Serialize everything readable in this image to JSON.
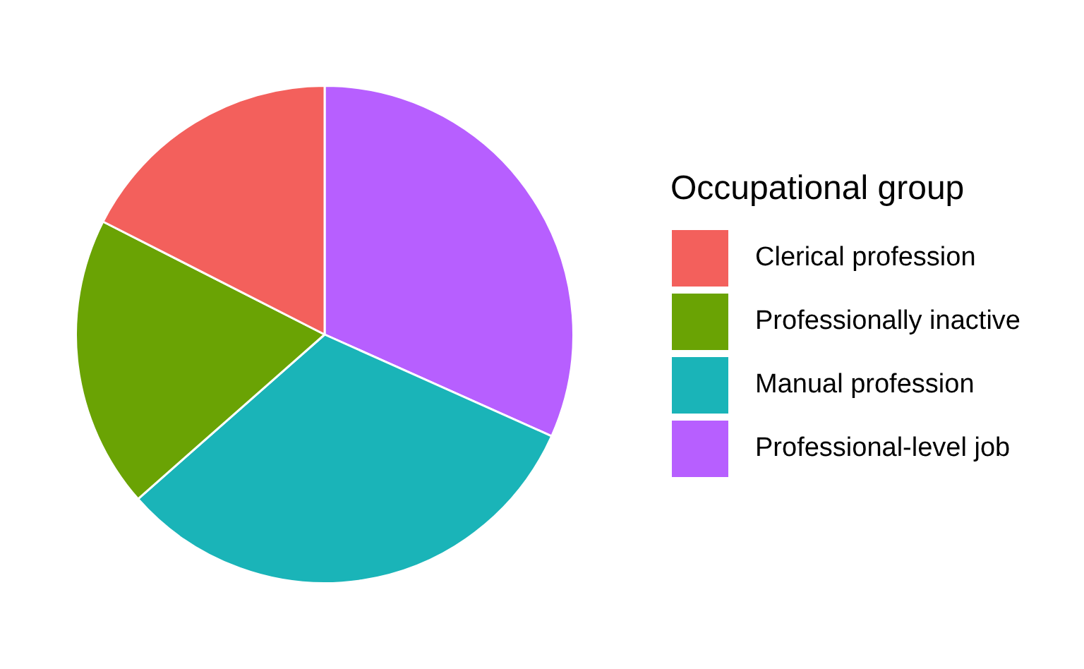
{
  "chart_data": {
    "type": "pie",
    "legend_title": "Occupational group",
    "legend": "right",
    "categories": [
      "Clerical profession",
      "Professionally inactive",
      "Manual profession",
      "Professional-level job"
    ],
    "values": [
      17.5,
      19,
      31.8,
      31.7
    ],
    "colors": [
      "#f3605c",
      "#6aa304",
      "#1ab4b8",
      "#b75fff"
    ]
  }
}
